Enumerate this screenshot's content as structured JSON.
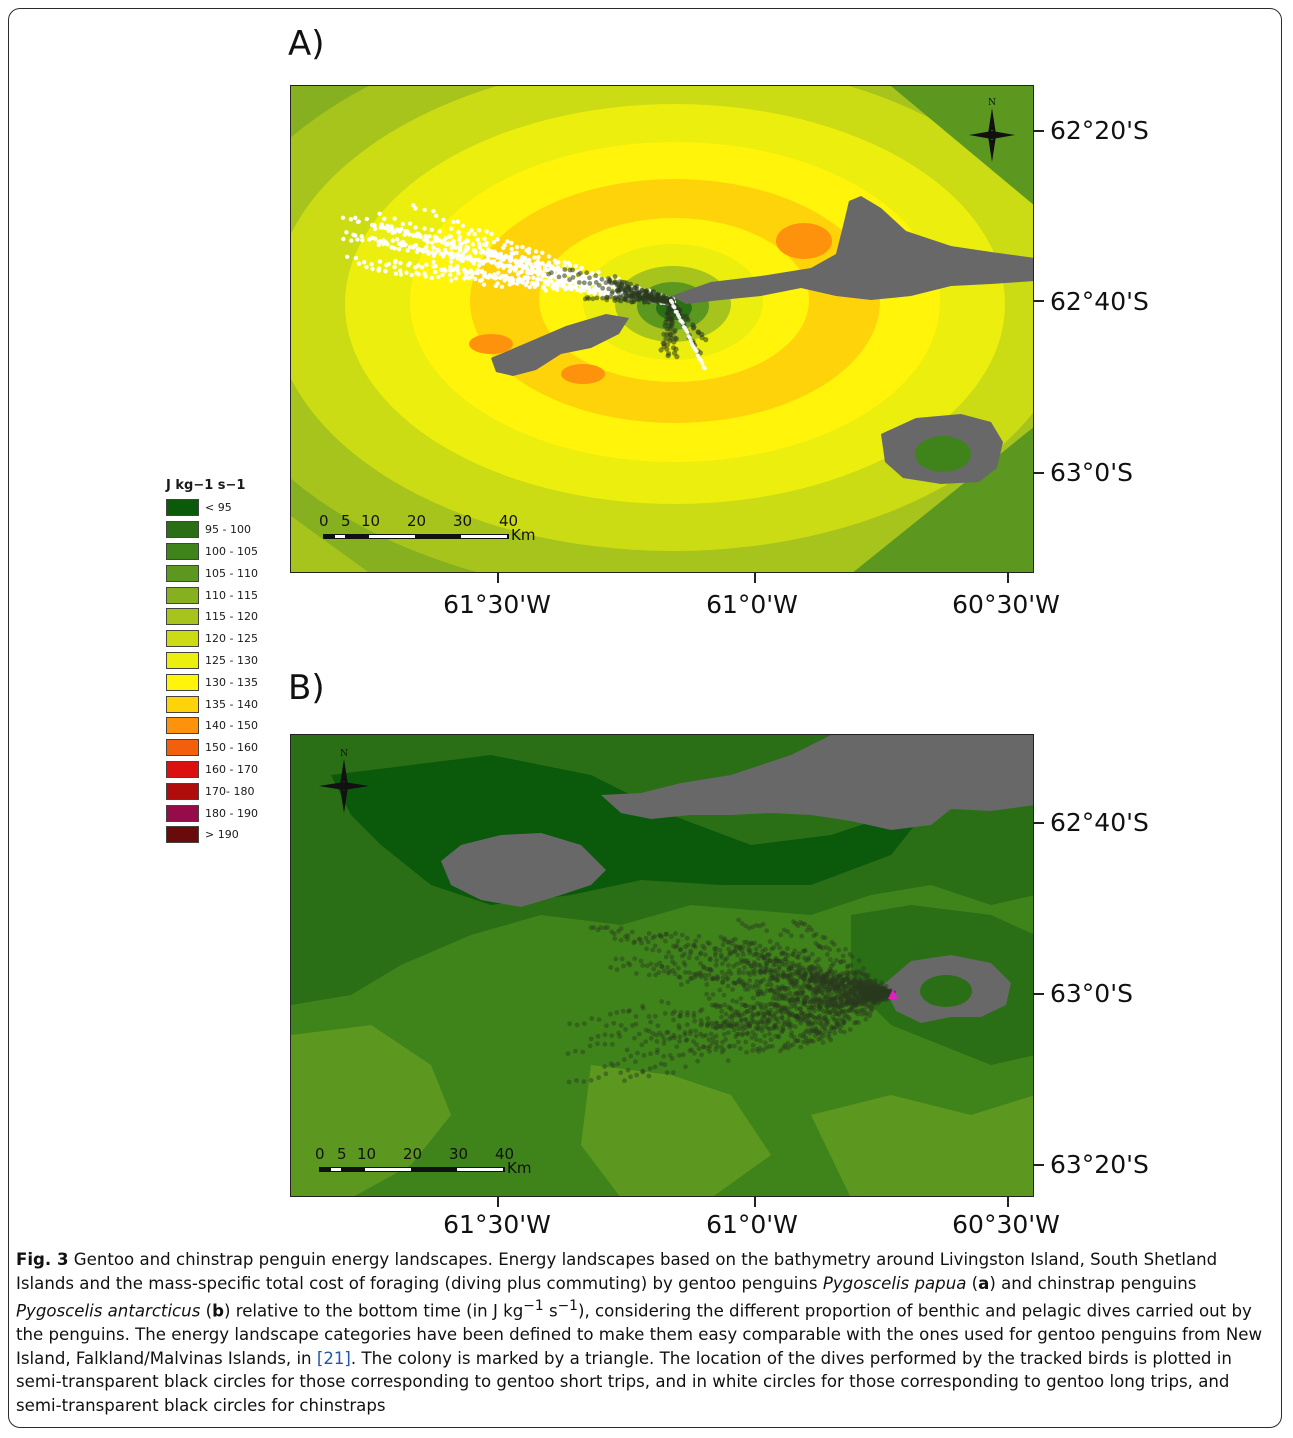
{
  "panels": [
    {
      "label": "A)",
      "lat_labels": [
        "62°20'S",
        "62°40'S",
        "63°0'S"
      ],
      "lon_labels": [
        "61°30'W",
        "61°0'W",
        "60°30'W"
      ],
      "scale_ticks": [
        "0",
        "5",
        "10",
        "20",
        "30",
        "40"
      ],
      "scale_unit": "Km",
      "north": "N"
    },
    {
      "label": "B)",
      "lat_labels": [
        "62°40'S",
        "63°0'S",
        "63°20'S"
      ],
      "lon_labels": [
        "61°30'W",
        "61°0'W",
        "60°30'W"
      ],
      "scale_ticks": [
        "0",
        "5",
        "10",
        "20",
        "30",
        "40"
      ],
      "scale_unit": "Km",
      "north": "N"
    }
  ],
  "legend": {
    "title": "J kg−1 s−1",
    "items": [
      {
        "label": "< 95",
        "color": "#0b5a0b"
      },
      {
        "label": "95 - 100",
        "color": "#2a6e16"
      },
      {
        "label": "100 - 105",
        "color": "#3f841a"
      },
      {
        "label": "105 - 110",
        "color": "#5c981f"
      },
      {
        "label": "110 - 115",
        "color": "#86b01f"
      },
      {
        "label": "115 - 120",
        "color": "#a7c41c"
      },
      {
        "label": "120 - 125",
        "color": "#cbdc14"
      },
      {
        "label": "125 - 130",
        "color": "#ecef0e"
      },
      {
        "label": "130 - 135",
        "color": "#fff40a"
      },
      {
        "label": "135 - 140",
        "color": "#ffd30a"
      },
      {
        "label": "140 - 150",
        "color": "#ff920c"
      },
      {
        "label": "150 - 160",
        "color": "#f2600c"
      },
      {
        "label": "160 - 170",
        "color": "#dc1010"
      },
      {
        "label": "170- 180",
        "color": "#b00c0c"
      },
      {
        "label": "180 - 190",
        "color": "#960c4a"
      },
      {
        "label": "> 190",
        "color": "#6a0a0a"
      }
    ]
  },
  "colors": {
    "land": "#686868",
    "colony": "#e020c0",
    "gentoo_long_trips": "#ffffff",
    "short_trips": "#2a3a1e"
  },
  "caption": {
    "fig": "Fig. 3",
    "s1": " Gentoo and chinstrap penguin energy landscapes. Energy landscapes based on the bathymetry around Livingston Island, South Shetland Islands and the mass-specific total cost of foraging (diving plus commuting) by gentoo penguins ",
    "sp1": "Pygoscelis papua",
    "s2": " (",
    "a": "a",
    "s3": ") and chinstrap penguins ",
    "sp2": "Pygoscelis antarcticus",
    "s4": " (",
    "b": "b",
    "s5": ") relative to the bottom time (in J kg",
    "sup1": "−1",
    "s6": " s",
    "sup2": "−1",
    "s7": "), considering the different proportion of benthic and pelagic dives carried out by the penguins. The energy landscape categories have been defined to make them easy comparable with the ones used for gentoo penguins from New Island, Falkland/Malvinas Islands, in ",
    "ref": "[21]",
    "s8": ". The colony is marked by a triangle. The location of the dives performed by the tracked birds is plotted in semi-transparent black circles for those corresponding to gentoo short trips, and in white circles for those corresponding to gentoo long trips, and semi-transparent black circles for chinstraps"
  }
}
